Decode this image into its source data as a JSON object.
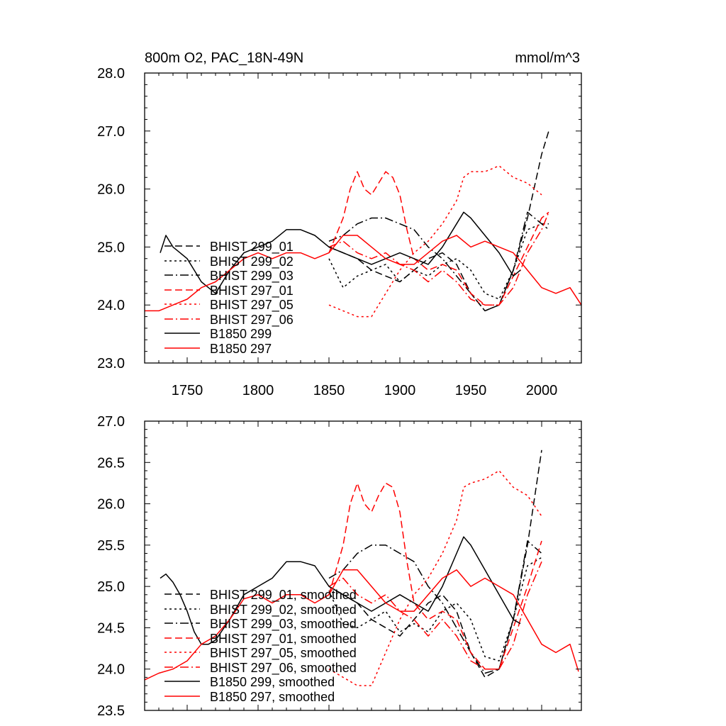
{
  "colors": {
    "black": "#000000",
    "red": "#ff0000"
  },
  "chart_data": [
    {
      "type": "line",
      "title": "800m O2, PAC_18N-49N",
      "units": "mmol/m^3",
      "xlim": [
        1720,
        2028
      ],
      "ylim": [
        23.0,
        28.0
      ],
      "xticks": [
        1750,
        1800,
        1850,
        1900,
        1950,
        2000
      ],
      "yticks": [
        23.0,
        24.0,
        25.0,
        26.0,
        27.0,
        28.0
      ],
      "ytick_labels": [
        "23.0",
        "24.0",
        "25.0",
        "26.0",
        "27.0",
        "28.0"
      ],
      "series": [
        {
          "name": "BHIST 299_01",
          "color": "#000000",
          "dash": "dash",
          "x": [
            1850,
            1860,
            1870,
            1880,
            1890,
            1900,
            1910,
            1920,
            1930,
            1940,
            1950,
            1960,
            1970,
            1980,
            1990,
            2000,
            2005
          ],
          "y": [
            25.0,
            24.9,
            24.8,
            24.6,
            24.5,
            24.4,
            24.6,
            24.8,
            24.9,
            24.7,
            24.2,
            23.9,
            24.0,
            24.6,
            25.5,
            26.6,
            27.0
          ]
        },
        {
          "name": "BHIST 299_02",
          "color": "#000000",
          "dash": "dot",
          "x": [
            1850,
            1860,
            1870,
            1880,
            1890,
            1900,
            1910,
            1920,
            1930,
            1940,
            1950,
            1960,
            1970,
            1980,
            1990,
            2000,
            2005
          ],
          "y": [
            24.8,
            24.3,
            24.5,
            24.6,
            24.7,
            24.4,
            24.6,
            24.5,
            24.7,
            24.8,
            24.6,
            24.2,
            24.1,
            24.6,
            25.3,
            25.4,
            25.3
          ]
        },
        {
          "name": "BHIST 299_03",
          "color": "#000000",
          "dash": "dashdot",
          "x": [
            1850,
            1860,
            1870,
            1880,
            1890,
            1900,
            1910,
            1920,
            1930,
            1940,
            1950,
            1960,
            1970,
            1980,
            1990,
            2000,
            2005
          ],
          "y": [
            25.1,
            25.2,
            25.4,
            25.5,
            25.5,
            25.4,
            25.3,
            25.0,
            24.8,
            24.5,
            24.2,
            23.9,
            24.0,
            24.6,
            25.6,
            25.4,
            25.4
          ]
        },
        {
          "name": "BHIST 297_01",
          "color": "#ff0000",
          "dash": "dash",
          "x": [
            1850,
            1855,
            1860,
            1865,
            1870,
            1875,
            1880,
            1885,
            1890,
            1895,
            1900,
            1905,
            1910,
            1920,
            1930,
            1940,
            1950,
            1960,
            1970,
            1980,
            1990,
            2000,
            2005
          ],
          "y": [
            24.9,
            25.2,
            25.5,
            26.0,
            26.3,
            26.0,
            25.9,
            26.1,
            26.3,
            26.2,
            25.9,
            25.3,
            24.8,
            24.6,
            24.7,
            24.6,
            24.2,
            24.0,
            24.0,
            24.5,
            25.0,
            25.5,
            25.6
          ]
        },
        {
          "name": "BHIST 297_05",
          "color": "#ff0000",
          "dash": "dot",
          "x": [
            1850,
            1860,
            1870,
            1880,
            1890,
            1900,
            1910,
            1920,
            1930,
            1940,
            1945,
            1950,
            1960,
            1970,
            1980,
            1990,
            2000
          ],
          "y": [
            24.0,
            23.9,
            23.8,
            23.8,
            24.2,
            24.6,
            24.9,
            25.1,
            25.4,
            25.8,
            26.2,
            26.3,
            26.3,
            26.4,
            26.2,
            26.1,
            25.9
          ]
        },
        {
          "name": "BHIST 297_06",
          "color": "#ff0000",
          "dash": "dashdot",
          "x": [
            1850,
            1860,
            1870,
            1880,
            1890,
            1900,
            1910,
            1920,
            1930,
            1940,
            1950,
            1960,
            1970,
            1980,
            1990,
            2000,
            2005
          ],
          "y": [
            25.0,
            25.1,
            24.9,
            24.8,
            24.9,
            24.7,
            24.6,
            24.4,
            24.6,
            24.4,
            24.1,
            24.0,
            24.0,
            24.3,
            24.9,
            25.3,
            25.6
          ]
        },
        {
          "name": "B1850 299",
          "color": "#000000",
          "dash": "solid",
          "x": [
            1731,
            1735,
            1740,
            1745,
            1750,
            1755,
            1760,
            1765,
            1770,
            1780,
            1790,
            1800,
            1810,
            1820,
            1830,
            1840,
            1850,
            1860,
            1870,
            1880,
            1890,
            1900,
            1910,
            1920,
            1930,
            1940,
            1945,
            1950,
            1960,
            1970,
            1980,
            1985
          ],
          "y": [
            24.9,
            25.2,
            25.0,
            24.9,
            24.8,
            24.6,
            24.4,
            24.3,
            24.2,
            24.6,
            24.9,
            25.0,
            25.1,
            25.3,
            25.3,
            25.2,
            25.0,
            24.9,
            24.8,
            24.7,
            24.8,
            24.9,
            24.8,
            24.7,
            25.0,
            25.4,
            25.6,
            25.5,
            25.2,
            24.9,
            24.5,
            24.6
          ]
        },
        {
          "name": "B1850 297",
          "color": "#ff0000",
          "dash": "solid",
          "x": [
            1720,
            1730,
            1740,
            1750,
            1760,
            1770,
            1780,
            1790,
            1800,
            1810,
            1820,
            1830,
            1840,
            1850,
            1860,
            1870,
            1880,
            1890,
            1900,
            1910,
            1920,
            1930,
            1940,
            1950,
            1960,
            1970,
            1980,
            1990,
            2000,
            2010,
            2020,
            2028
          ],
          "y": [
            23.9,
            23.9,
            24.0,
            24.1,
            24.3,
            24.4,
            24.6,
            24.8,
            24.9,
            24.8,
            24.9,
            24.9,
            24.8,
            24.9,
            25.2,
            25.2,
            25.0,
            24.8,
            24.7,
            24.7,
            24.9,
            25.1,
            25.2,
            25.0,
            25.1,
            25.0,
            24.9,
            24.6,
            24.3,
            24.2,
            24.3,
            24.0
          ]
        }
      ]
    },
    {
      "type": "line",
      "title": "",
      "units": "",
      "xlim": [
        1720,
        2028
      ],
      "ylim": [
        23.5,
        27.0
      ],
      "xticks": [
        1750,
        1800,
        1850,
        1900,
        1950,
        2000
      ],
      "yticks": [
        23.5,
        24.0,
        24.5,
        25.0,
        25.5,
        26.0,
        26.5,
        27.0
      ],
      "ytick_labels": [
        "23.5",
        "24.0",
        "24.5",
        "25.0",
        "25.5",
        "26.0",
        "26.5",
        "27.0"
      ],
      "series": [
        {
          "name": "BHIST 299_01, smoothed",
          "color": "#000000",
          "dash": "dash",
          "x": [
            1850,
            1860,
            1870,
            1880,
            1890,
            1900,
            1910,
            1920,
            1930,
            1940,
            1950,
            1960,
            1970,
            1980,
            1990,
            2000
          ],
          "y": [
            25.0,
            24.9,
            24.8,
            24.6,
            24.5,
            24.4,
            24.6,
            24.8,
            24.9,
            24.7,
            24.2,
            23.9,
            24.0,
            24.6,
            25.5,
            26.65
          ]
        },
        {
          "name": "BHIST 299_02, smoothed",
          "color": "#000000",
          "dash": "dot",
          "x": [
            1850,
            1860,
            1870,
            1880,
            1890,
            1900,
            1910,
            1920,
            1930,
            1940,
            1950,
            1960,
            1970,
            1980,
            1990,
            2000
          ],
          "y": [
            24.95,
            24.55,
            24.5,
            24.6,
            24.7,
            24.45,
            24.55,
            24.45,
            24.7,
            24.8,
            24.6,
            24.15,
            24.1,
            24.6,
            25.25,
            25.35
          ]
        },
        {
          "name": "BHIST 299_03, smoothed",
          "color": "#000000",
          "dash": "dashdot",
          "x": [
            1850,
            1860,
            1870,
            1880,
            1890,
            1900,
            1910,
            1920,
            1930,
            1940,
            1950,
            1960,
            1970,
            1980,
            1990,
            2000
          ],
          "y": [
            25.1,
            25.2,
            25.4,
            25.5,
            25.5,
            25.4,
            25.3,
            25.0,
            24.8,
            24.5,
            24.2,
            23.95,
            24.0,
            24.6,
            25.55,
            25.4
          ]
        },
        {
          "name": "BHIST 297_01, smoothed",
          "color": "#ff0000",
          "dash": "dash",
          "x": [
            1850,
            1855,
            1860,
            1865,
            1870,
            1875,
            1880,
            1885,
            1890,
            1895,
            1900,
            1905,
            1910,
            1920,
            1930,
            1940,
            1950,
            1960,
            1970,
            1980,
            1990,
            2000
          ],
          "y": [
            24.9,
            25.2,
            25.5,
            26.0,
            26.25,
            26.0,
            25.9,
            26.1,
            26.25,
            26.2,
            25.9,
            25.3,
            24.8,
            24.6,
            24.7,
            24.6,
            24.2,
            24.0,
            24.0,
            24.5,
            25.0,
            25.55
          ]
        },
        {
          "name": "BHIST 297_05, smoothed",
          "color": "#ff0000",
          "dash": "dot",
          "x": [
            1850,
            1860,
            1870,
            1880,
            1890,
            1900,
            1910,
            1920,
            1930,
            1940,
            1945,
            1950,
            1960,
            1970,
            1980,
            1990,
            2000
          ],
          "y": [
            24.0,
            23.9,
            23.8,
            23.8,
            24.2,
            24.6,
            24.9,
            25.1,
            25.4,
            25.8,
            26.2,
            26.25,
            26.3,
            26.4,
            26.2,
            26.1,
            25.85
          ]
        },
        {
          "name": "BHIST 297_06, smoothed",
          "color": "#ff0000",
          "dash": "dashdot",
          "x": [
            1850,
            1860,
            1870,
            1880,
            1890,
            1900,
            1910,
            1920,
            1930,
            1940,
            1950,
            1960,
            1970,
            1980,
            1990,
            2000
          ],
          "y": [
            25.0,
            25.1,
            24.9,
            24.8,
            24.9,
            24.7,
            24.6,
            24.4,
            24.6,
            24.4,
            24.1,
            24.0,
            24.0,
            24.3,
            24.9,
            25.3
          ]
        },
        {
          "name": "B1850 299, smoothed",
          "color": "#000000",
          "dash": "solid",
          "x": [
            1731,
            1735,
            1740,
            1745,
            1750,
            1755,
            1760,
            1765,
            1770,
            1780,
            1790,
            1800,
            1810,
            1820,
            1830,
            1840,
            1850,
            1860,
            1870,
            1880,
            1890,
            1900,
            1910,
            1920,
            1930,
            1940,
            1945,
            1950,
            1960,
            1970,
            1980,
            1985
          ],
          "y": [
            25.1,
            25.15,
            25.05,
            24.9,
            24.7,
            24.45,
            24.3,
            24.3,
            24.35,
            24.6,
            24.9,
            25.0,
            25.1,
            25.3,
            25.3,
            25.25,
            25.0,
            24.9,
            24.8,
            24.7,
            24.8,
            24.9,
            24.8,
            24.7,
            25.0,
            25.4,
            25.6,
            25.5,
            25.2,
            24.9,
            24.6,
            24.55
          ]
        },
        {
          "name": "B1850 297, smoothed",
          "color": "#ff0000",
          "dash": "solid",
          "x": [
            1720,
            1730,
            1740,
            1750,
            1760,
            1770,
            1780,
            1790,
            1800,
            1810,
            1820,
            1830,
            1840,
            1850,
            1860,
            1870,
            1880,
            1890,
            1900,
            1910,
            1920,
            1930,
            1940,
            1950,
            1960,
            1970,
            1980,
            1990,
            2000,
            2010,
            2020,
            2026
          ],
          "y": [
            23.87,
            23.95,
            24.0,
            24.1,
            24.3,
            24.4,
            24.6,
            24.85,
            24.9,
            24.8,
            24.9,
            24.9,
            24.8,
            24.9,
            25.2,
            25.2,
            25.0,
            24.8,
            24.7,
            24.7,
            24.9,
            25.1,
            25.2,
            25.0,
            25.1,
            25.0,
            24.9,
            24.6,
            24.3,
            24.2,
            24.3,
            23.97
          ]
        }
      ]
    }
  ]
}
